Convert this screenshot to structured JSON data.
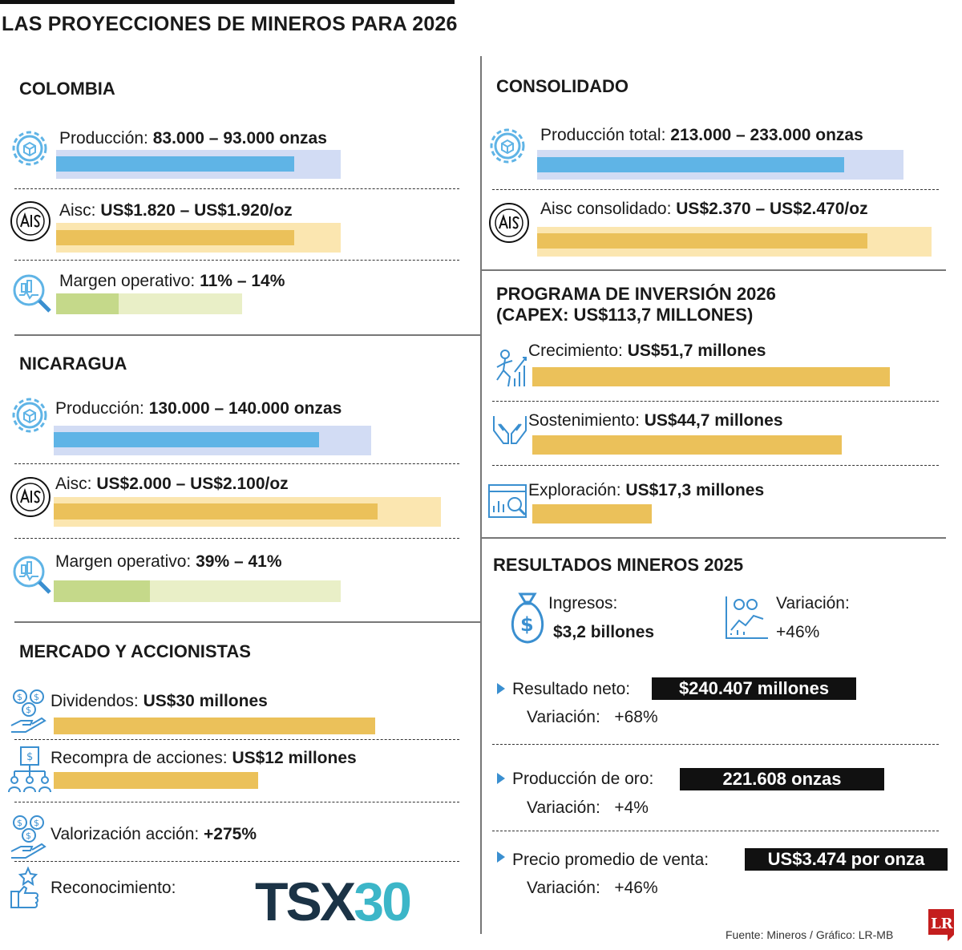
{
  "title": "LAS PROYECCIONES DE MINEROS PARA 2026",
  "colors": {
    "blue_fill": "#5fb4e6",
    "blue_track": "#d2dcf4",
    "gold_fill": "#ebc15a",
    "gold_track": "#fbe6b0",
    "green_fill": "#c5d98a",
    "green_track": "#e9efc7",
    "accent_blue": "#3a8fd0",
    "logo_dark": "#1b3346",
    "logo_teal": "#3cb6c8",
    "lr_red": "#c41e1e"
  },
  "colombia": {
    "title": "COLOMBIA",
    "produccion": {
      "prefix": "Producción: ",
      "range": "83.000 – 93.000 onzas"
    },
    "aisc": {
      "prefix": "Aisc: ",
      "range": "US$1.820 – US$1.920/oz"
    },
    "margen": {
      "prefix": "Margen operativo: ",
      "range": "11% – 14%"
    }
  },
  "nicaragua": {
    "title": "NICARAGUA",
    "produccion": {
      "prefix": "Producción: ",
      "range": "130.000 – 140.000 onzas"
    },
    "aisc": {
      "prefix": "Aisc: ",
      "range": "US$2.000 – US$2.100/oz"
    },
    "margen": {
      "prefix": "Margen operativo: ",
      "range": "39% – 41%"
    }
  },
  "mercado": {
    "title": "MERCADO Y ACCIONISTAS",
    "dividendos": {
      "prefix": "Dividendos: ",
      "value": "US$30 millones"
    },
    "recompra": {
      "prefix": "Recompra de acciones: ",
      "value": "US$12 millones"
    },
    "valorizacion": {
      "prefix": "Valorización acción: ",
      "value": "+275%"
    },
    "reconocimiento": {
      "label": "Reconocimiento:",
      "logo_main": "TSX",
      "logo_num": "30"
    }
  },
  "consolidado": {
    "title": "CONSOLIDADO",
    "produccion": {
      "prefix": "Producción total: ",
      "range": "213.000 – 233.000 onzas"
    },
    "aisc": {
      "prefix": "Aisc consolidado: ",
      "range": "US$2.370 – US$2.470/oz"
    }
  },
  "inversion": {
    "title_line1": "PROGRAMA DE INVERSIÓN 2026",
    "title_line2": "(CAPEX: US$113,7 MILLONES)",
    "crecimiento": {
      "prefix": "Crecimiento: ",
      "value": "US$51,7 millones"
    },
    "sostenimiento": {
      "prefix": "Sostenimiento: ",
      "value": "US$44,7 millones"
    },
    "exploracion": {
      "prefix": "Exploración: ",
      "value": "US$17,3 millones"
    }
  },
  "resultados": {
    "title": "RESULTADOS MINEROS 2025",
    "ingresos_label": "Ingresos:",
    "ingresos_value": "$3,2 billones",
    "variacion_label": "Variación:",
    "variacion_value": "+46%",
    "neto": {
      "label": "Resultado neto:",
      "value": "$240.407 millones",
      "var_label": "Variación:",
      "var_value": "+68%"
    },
    "oro": {
      "label": "Producción de oro:",
      "value": "221.608 onzas",
      "var_label": "Variación:",
      "var_value": "+4%"
    },
    "precio": {
      "label": "Precio promedio de venta:",
      "value": "US$3.474 por onza",
      "var_label": "Variación:",
      "var_value": "+46%"
    }
  },
  "source": "Fuente: Mineros / Gráfico: LR-MB",
  "lr_logo": "LR",
  "chart_data": {
    "type": "bar",
    "series": [
      {
        "name": "Crecimiento",
        "values": [
          51.7
        ]
      },
      {
        "name": "Sostenimiento",
        "values": [
          44.7
        ]
      },
      {
        "name": "Exploración",
        "values": [
          17.3
        ]
      },
      {
        "name": "Dividendos",
        "values": [
          30
        ]
      },
      {
        "name": "Recompra de acciones",
        "values": [
          12
        ]
      }
    ],
    "categories": [
      "US$ millones"
    ],
    "ranges": [
      {
        "name": "Producción",
        "section": "COLOMBIA",
        "low": 83000,
        "high": 93000
      },
      {
        "name": "Aisc",
        "section": "COLOMBIA",
        "low": 1820,
        "high": 1920
      },
      {
        "name": "Margen operativo",
        "section": "COLOMBIA",
        "low": 11,
        "high": 14
      },
      {
        "name": "Producción",
        "section": "NICARAGUA",
        "low": 130000,
        "high": 140000
      },
      {
        "name": "Aisc",
        "section": "NICARAGUA",
        "low": 2000,
        "high": 2100
      },
      {
        "name": "Margen operativo",
        "section": "NICARAGUA",
        "low": 39,
        "high": 41
      },
      {
        "name": "Producción total",
        "section": "CONSOLIDADO",
        "low": 213000,
        "high": 233000
      },
      {
        "name": "Aisc consolidado",
        "section": "CONSOLIDADO",
        "low": 2370,
        "high": 2470
      }
    ]
  }
}
